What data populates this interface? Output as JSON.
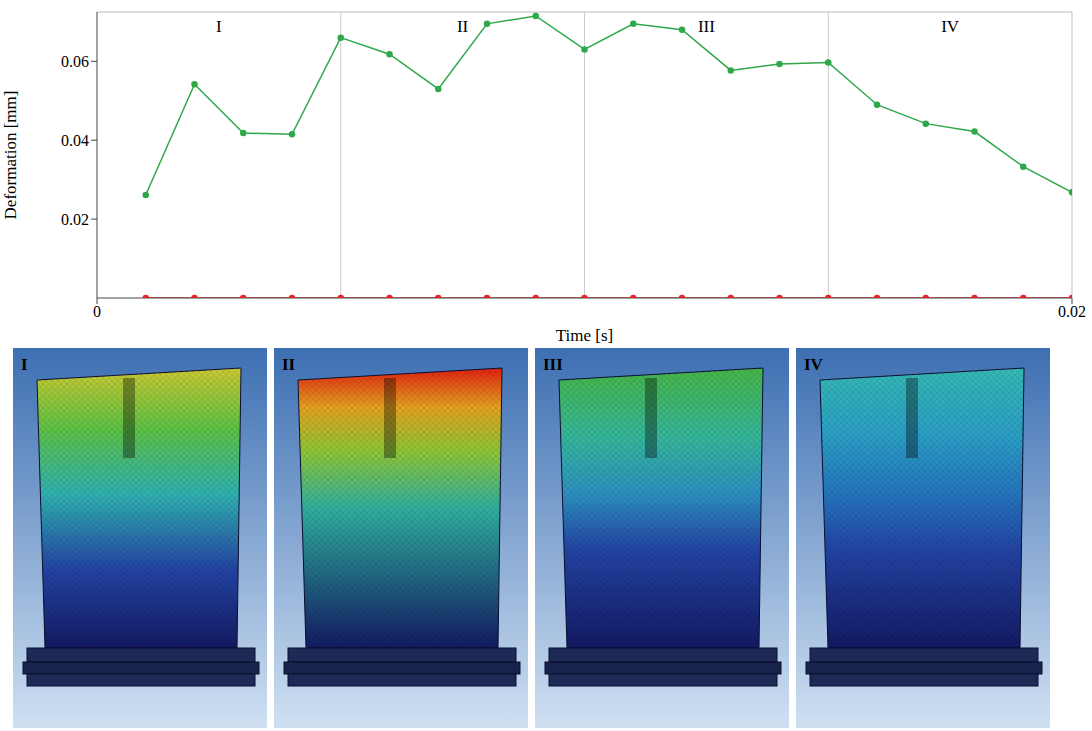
{
  "chart_data": {
    "type": "line",
    "x_label": "Time [s]",
    "y_label": "Deformation [mm]",
    "x": [
      0.001,
      0.002,
      0.003,
      0.004,
      0.005,
      0.006,
      0.007,
      0.008,
      0.009,
      0.01,
      0.011,
      0.012,
      0.013,
      0.014,
      0.015,
      0.016,
      0.017,
      0.018,
      0.019,
      0.02
    ],
    "series": [
      {
        "color": "#2ea84a",
        "marker": "circle",
        "values": [
          0.0261,
          0.0542,
          0.0418,
          0.0415,
          0.066,
          0.0618,
          0.053,
          0.0695,
          0.0715,
          0.063,
          0.0695,
          0.068,
          0.0577,
          0.0593,
          0.0597,
          0.049,
          0.0442,
          0.0422,
          0.0333,
          0.0268
        ]
      },
      {
        "color": "#e8242b",
        "marker": "circle",
        "values": [
          0,
          0,
          0,
          0,
          0,
          0,
          0,
          0,
          0,
          0,
          0,
          0,
          0,
          0,
          0,
          0,
          0,
          0,
          0,
          0
        ]
      }
    ],
    "xlim": [
      0,
      0.02
    ],
    "xticks": [
      0,
      0.02
    ],
    "ylim": [
      0,
      0.0725
    ],
    "yticks": [
      0.02,
      0.04,
      0.06
    ],
    "grid": false,
    "regions": [
      {
        "label": "I",
        "x": [
          0,
          0.005
        ]
      },
      {
        "label": "II",
        "x": [
          0.005,
          0.01
        ]
      },
      {
        "label": "III",
        "x": [
          0.01,
          0.015
        ]
      },
      {
        "label": "IV",
        "x": [
          0.015,
          0.02
        ]
      }
    ]
  },
  "images": [
    {
      "label": "I"
    },
    {
      "label": "II"
    },
    {
      "label": "III"
    },
    {
      "label": "IV"
    }
  ]
}
